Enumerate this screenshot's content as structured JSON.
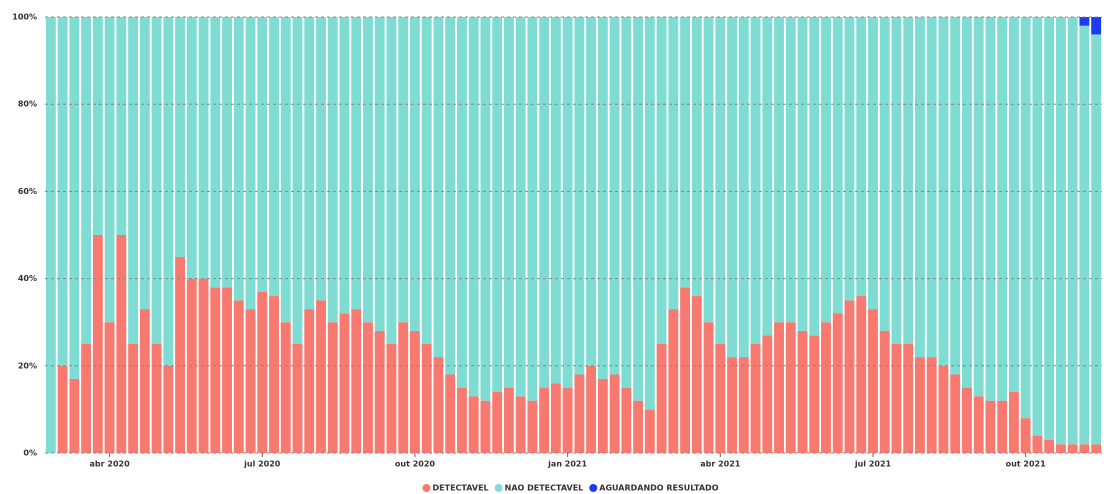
{
  "chart_data": {
    "type": "stacked_bar",
    "categories": [
      null,
      null,
      null,
      null,
      null,
      "abr 2020",
      null,
      null,
      null,
      null,
      null,
      null,
      null,
      null,
      null,
      null,
      null,
      null,
      "jul 2020",
      null,
      null,
      null,
      null,
      null,
      null,
      null,
      null,
      null,
      null,
      null,
      null,
      "out 2020",
      null,
      null,
      null,
      null,
      null,
      null,
      null,
      null,
      null,
      null,
      null,
      null,
      "jan 2021",
      null,
      null,
      null,
      null,
      null,
      null,
      null,
      null,
      null,
      null,
      null,
      null,
      "abr 2021",
      null,
      null,
      null,
      null,
      null,
      null,
      null,
      null,
      null,
      null,
      null,
      null,
      "jul 2021",
      null,
      null,
      null,
      null,
      null,
      null,
      null,
      null,
      null,
      null,
      null,
      null,
      "out 2021",
      null,
      null,
      null,
      null,
      null,
      null
    ],
    "series": [
      {
        "name": "DETECTAVEL",
        "color": "#f8796f",
        "values": [
          0,
          20,
          17,
          25,
          50,
          30,
          50,
          25,
          33,
          25,
          20,
          45,
          40,
          40,
          38,
          38,
          35,
          33,
          37,
          36,
          30,
          25,
          33,
          35,
          30,
          32,
          33,
          30,
          28,
          25,
          30,
          28,
          25,
          22,
          18,
          15,
          13,
          12,
          14,
          15,
          13,
          12,
          15,
          16,
          15,
          18,
          20,
          17,
          18,
          15,
          12,
          10,
          25,
          33,
          38,
          36,
          30,
          25,
          22,
          22,
          25,
          27,
          30,
          30,
          28,
          27,
          30,
          32,
          35,
          36,
          33,
          28,
          25,
          25,
          22,
          22,
          20,
          18,
          15,
          13,
          12,
          12,
          14,
          8,
          4,
          3,
          2,
          2,
          2,
          2
        ]
      },
      {
        "name": "NAO DETECTAVEL",
        "color": "#7fdcd3",
        "values": [
          100,
          80,
          83,
          75,
          50,
          70,
          50,
          75,
          67,
          75,
          80,
          55,
          60,
          60,
          62,
          62,
          65,
          67,
          63,
          64,
          70,
          75,
          67,
          65,
          70,
          68,
          67,
          70,
          72,
          75,
          70,
          72,
          75,
          78,
          82,
          85,
          87,
          88,
          86,
          85,
          87,
          88,
          85,
          84,
          85,
          82,
          80,
          83,
          82,
          85,
          88,
          90,
          75,
          67,
          62,
          64,
          70,
          75,
          78,
          78,
          75,
          73,
          70,
          70,
          72,
          73,
          70,
          68,
          65,
          64,
          67,
          72,
          75,
          75,
          78,
          78,
          80,
          82,
          85,
          87,
          88,
          88,
          86,
          92,
          96,
          97,
          98,
          98,
          96,
          94
        ]
      },
      {
        "name": "AGUARDANDO RESULTADO",
        "color": "#1d3cf2",
        "values": [
          0,
          0,
          0,
          0,
          0,
          0,
          0,
          0,
          0,
          0,
          0,
          0,
          0,
          0,
          0,
          0,
          0,
          0,
          0,
          0,
          0,
          0,
          0,
          0,
          0,
          0,
          0,
          0,
          0,
          0,
          0,
          0,
          0,
          0,
          0,
          0,
          0,
          0,
          0,
          0,
          0,
          0,
          0,
          0,
          0,
          0,
          0,
          0,
          0,
          0,
          0,
          0,
          0,
          0,
          0,
          0,
          0,
          0,
          0,
          0,
          0,
          0,
          0,
          0,
          0,
          0,
          0,
          0,
          0,
          0,
          0,
          0,
          0,
          0,
          0,
          0,
          0,
          0,
          0,
          0,
          0,
          0,
          0,
          0,
          0,
          0,
          0,
          0,
          2,
          4
        ]
      }
    ],
    "ylim": [
      0,
      100
    ],
    "yticks": [
      {
        "value": 0,
        "label": "0%"
      },
      {
        "value": 20,
        "label": "20%"
      },
      {
        "value": 40,
        "label": "40%"
      },
      {
        "value": 60,
        "label": "60%"
      },
      {
        "value": 80,
        "label": "80%"
      },
      {
        "value": 100,
        "label": "100%"
      }
    ],
    "grid": true,
    "legend": "bottom"
  }
}
